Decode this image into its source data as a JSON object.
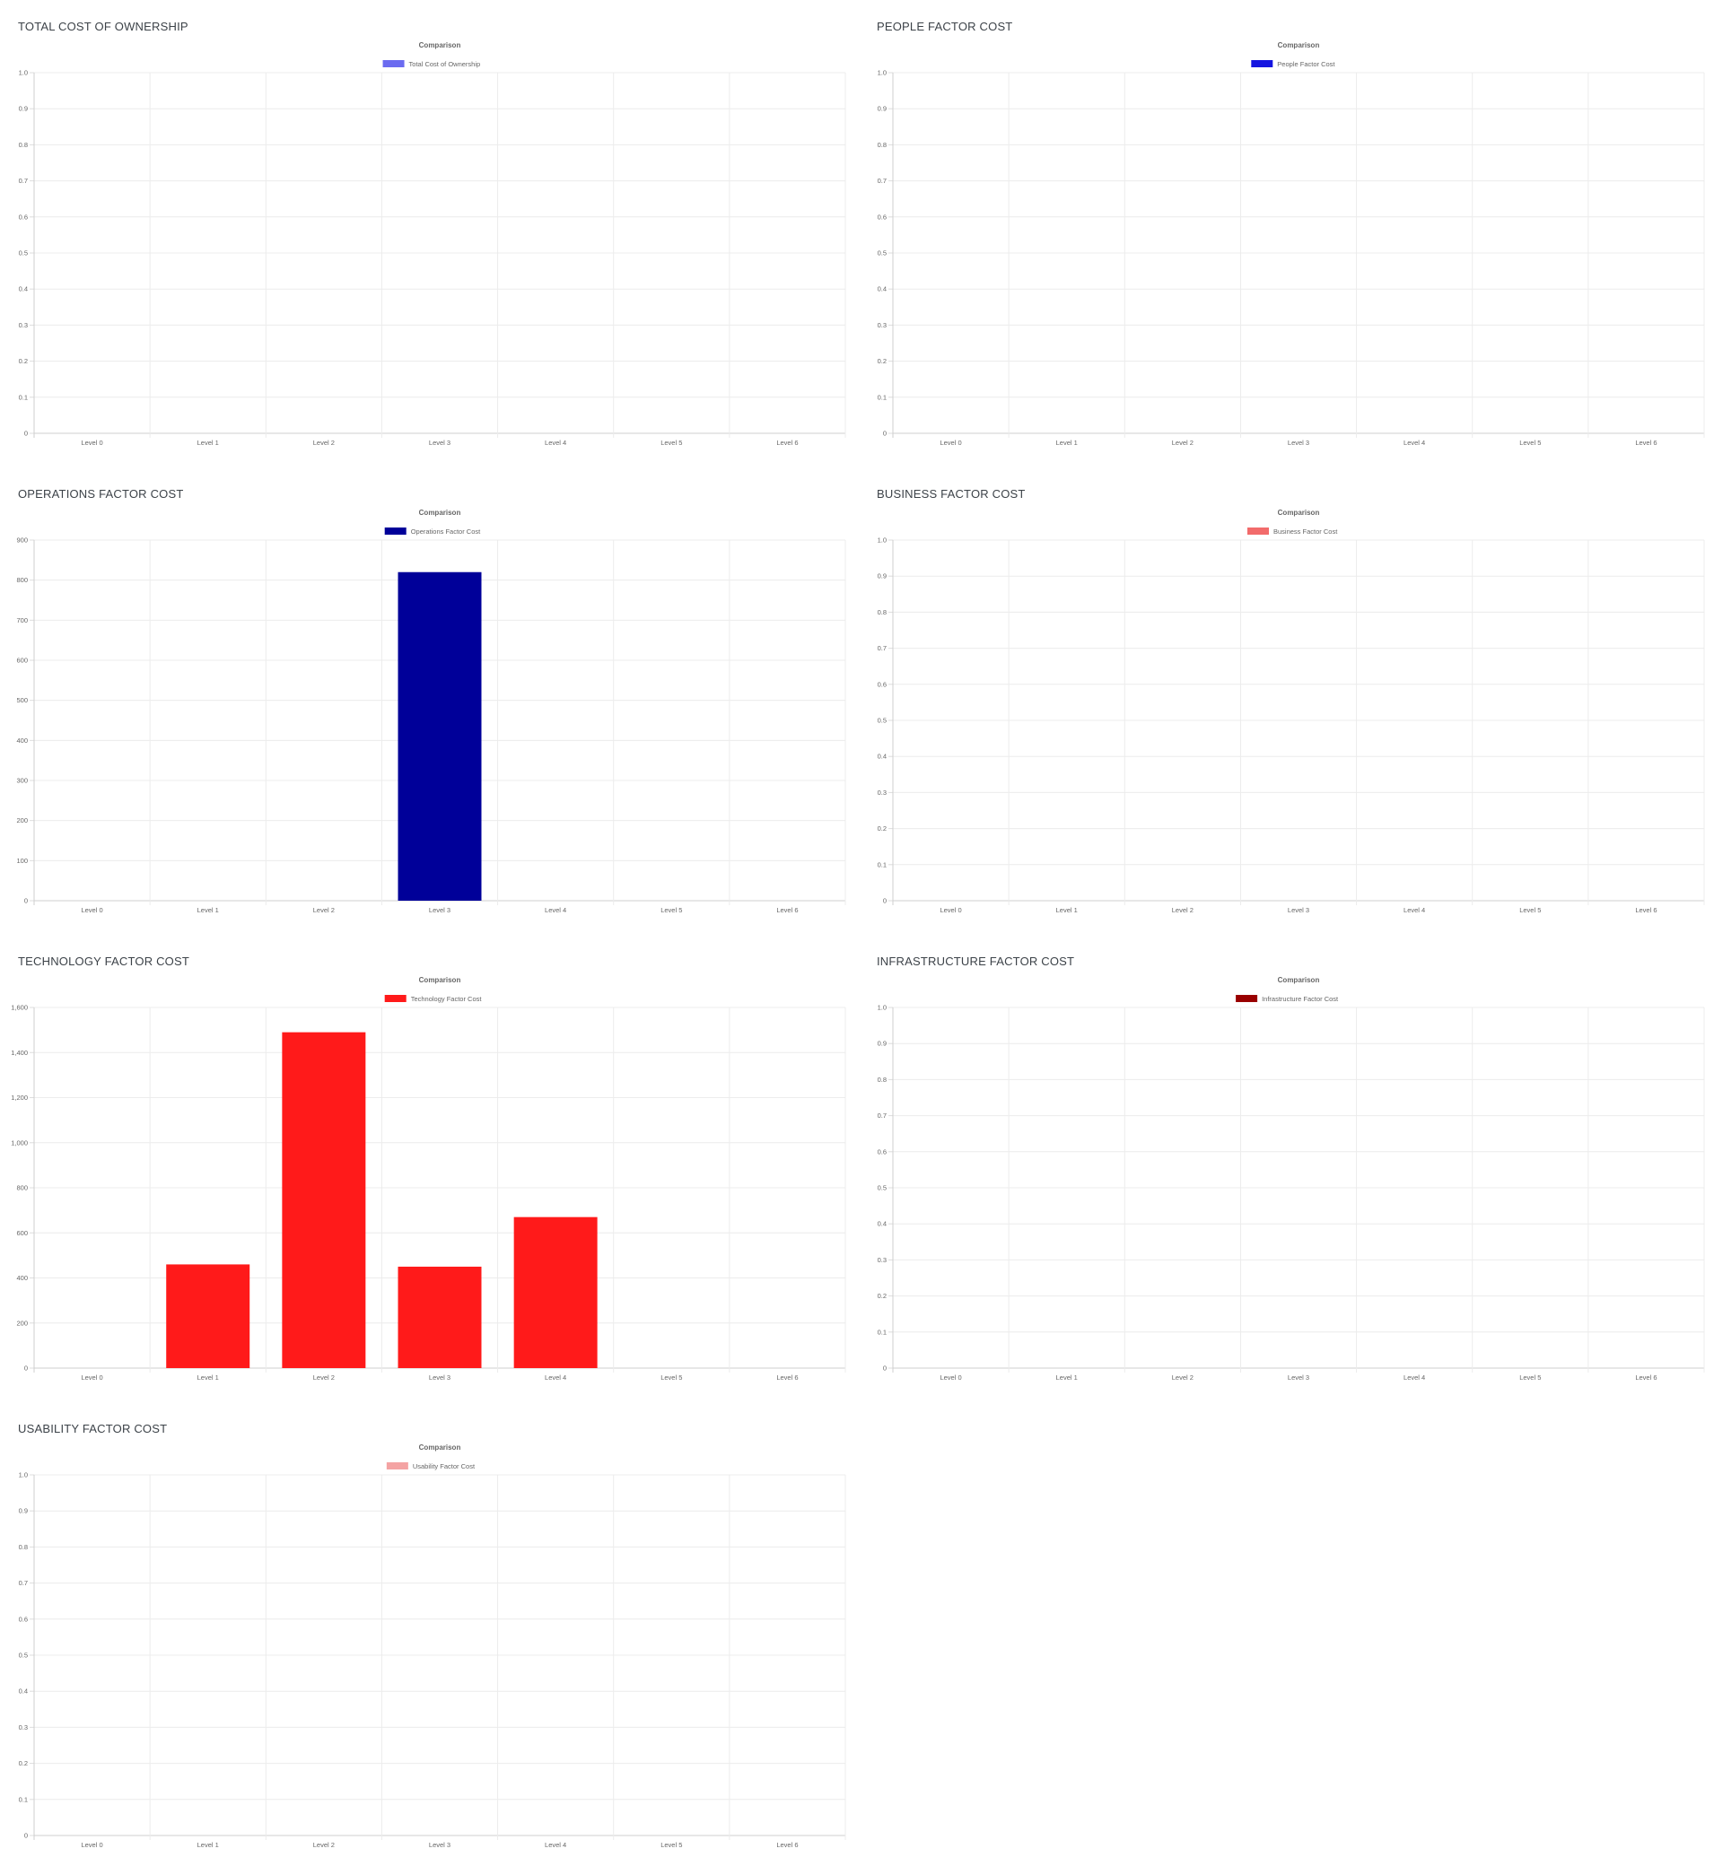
{
  "charts": [
    {
      "id": "total-cost-of-ownership",
      "panel_title": "TOTAL COST OF OWNERSHIP",
      "chart_data": {
        "type": "bar",
        "title": "Comparison",
        "categories": [
          "Level 0",
          "Level 1",
          "Level 2",
          "Level 3",
          "Level 4",
          "Level 5",
          "Level 6"
        ],
        "series": [
          {
            "name": "Total Cost of Ownership",
            "color": "#6b6bf0",
            "values": [
              0,
              0,
              0,
              0,
              0,
              0,
              0
            ]
          }
        ],
        "yticks": [
          "0",
          "0.1",
          "0.2",
          "0.3",
          "0.4",
          "0.5",
          "0.6",
          "0.7",
          "0.8",
          "0.9",
          "1.0"
        ],
        "ylim": [
          0,
          1
        ],
        "legend_position": "top",
        "grid": true
      }
    },
    {
      "id": "people-factor-cost",
      "panel_title": "PEOPLE FACTOR COST",
      "chart_data": {
        "type": "bar",
        "title": "Comparison",
        "categories": [
          "Level 0",
          "Level 1",
          "Level 2",
          "Level 3",
          "Level 4",
          "Level 5",
          "Level 6"
        ],
        "series": [
          {
            "name": "People Factor Cost",
            "color": "#1515e0",
            "values": [
              0,
              0,
              0,
              0,
              0,
              0,
              0
            ]
          }
        ],
        "yticks": [
          "0",
          "0.1",
          "0.2",
          "0.3",
          "0.4",
          "0.5",
          "0.6",
          "0.7",
          "0.8",
          "0.9",
          "1.0"
        ],
        "ylim": [
          0,
          1
        ],
        "legend_position": "top",
        "grid": true
      }
    },
    {
      "id": "operations-factor-cost",
      "panel_title": "OPERATIONS FACTOR COST",
      "chart_data": {
        "type": "bar",
        "title": "Comparison",
        "categories": [
          "Level 0",
          "Level 1",
          "Level 2",
          "Level 3",
          "Level 4",
          "Level 5",
          "Level 6"
        ],
        "series": [
          {
            "name": "Operations Factor Cost",
            "color": "#000099",
            "values": [
              0,
              0,
              0,
              820,
              0,
              0,
              0
            ]
          }
        ],
        "yticks": [
          "0",
          "100",
          "200",
          "300",
          "400",
          "500",
          "600",
          "700",
          "800",
          "900"
        ],
        "ylim": [
          0,
          900
        ],
        "legend_position": "top",
        "grid": true
      }
    },
    {
      "id": "business-factor-cost",
      "panel_title": "BUSINESS FACTOR COST",
      "chart_data": {
        "type": "bar",
        "title": "Comparison",
        "categories": [
          "Level 0",
          "Level 1",
          "Level 2",
          "Level 3",
          "Level 4",
          "Level 5",
          "Level 6"
        ],
        "series": [
          {
            "name": "Business Factor Cost",
            "color": "#f26b6b",
            "values": [
              0,
              0,
              0,
              0,
              0,
              0,
              0
            ]
          }
        ],
        "yticks": [
          "0",
          "0.1",
          "0.2",
          "0.3",
          "0.4",
          "0.5",
          "0.6",
          "0.7",
          "0.8",
          "0.9",
          "1.0"
        ],
        "ylim": [
          0,
          1
        ],
        "legend_position": "top",
        "grid": true
      }
    },
    {
      "id": "technology-factor-cost",
      "panel_title": "TECHNOLOGY FACTOR COST",
      "chart_data": {
        "type": "bar",
        "title": "Comparison",
        "categories": [
          "Level 0",
          "Level 1",
          "Level 2",
          "Level 3",
          "Level 4",
          "Level 5",
          "Level 6"
        ],
        "series": [
          {
            "name": "Technology Factor Cost",
            "color": "#ff1a1a",
            "values": [
              0,
              460,
              1490,
              450,
              670,
              0,
              0
            ]
          }
        ],
        "yticks": [
          "0",
          "200",
          "400",
          "600",
          "800",
          "1,000",
          "1,200",
          "1,400",
          "1,600"
        ],
        "ylim": [
          0,
          1600
        ],
        "legend_position": "top",
        "grid": true
      }
    },
    {
      "id": "infrastructure-factor-cost",
      "panel_title": "INFRASTRUCTURE FACTOR COST",
      "chart_data": {
        "type": "bar",
        "title": "Comparison",
        "categories": [
          "Level 0",
          "Level 1",
          "Level 2",
          "Level 3",
          "Level 4",
          "Level 5",
          "Level 6"
        ],
        "series": [
          {
            "name": "Infrastructure Factor Cost",
            "color": "#990000",
            "values": [
              0,
              0,
              0,
              0,
              0,
              0,
              0
            ]
          }
        ],
        "yticks": [
          "0",
          "0.1",
          "0.2",
          "0.3",
          "0.4",
          "0.5",
          "0.6",
          "0.7",
          "0.8",
          "0.9",
          "1.0"
        ],
        "ylim": [
          0,
          1
        ],
        "legend_position": "top",
        "grid": true
      }
    },
    {
      "id": "usability-factor-cost",
      "panel_title": "USABILITY FACTOR COST",
      "chart_data": {
        "type": "bar",
        "title": "Comparison",
        "categories": [
          "Level 0",
          "Level 1",
          "Level 2",
          "Level 3",
          "Level 4",
          "Level 5",
          "Level 6"
        ],
        "series": [
          {
            "name": "Usability Factor Cost",
            "color": "#f4a3a3",
            "values": [
              0,
              0,
              0,
              0,
              0,
              0,
              0
            ]
          }
        ],
        "yticks": [
          "0",
          "0.1",
          "0.2",
          "0.3",
          "0.4",
          "0.5",
          "0.6",
          "0.7",
          "0.8",
          "0.9",
          "1.0"
        ],
        "ylim": [
          0,
          1
        ],
        "legend_position": "top",
        "grid": true
      }
    }
  ]
}
